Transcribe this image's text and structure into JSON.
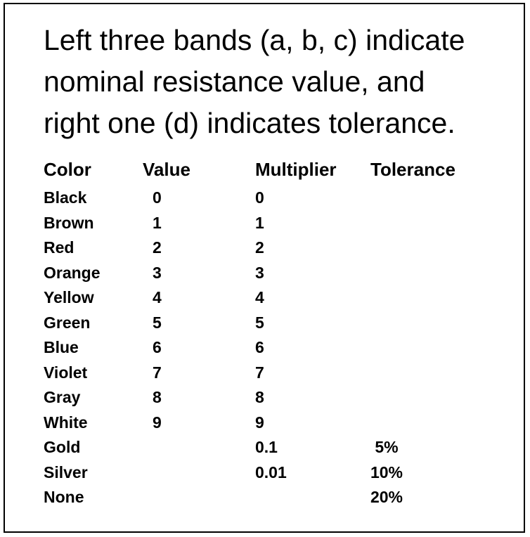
{
  "intro": {
    "lines": [
      "Left three bands (a, b, c) indicate",
      "nominal resistance value, and",
      "right one (d) indicates tolerance."
    ]
  },
  "table": {
    "headers": {
      "color": "Color",
      "value": "Value",
      "multiplier": "Multiplier",
      "tolerance": "Tolerance"
    },
    "rows": [
      {
        "color": "Black",
        "value": "0",
        "multiplier": "0",
        "tolerance": ""
      },
      {
        "color": "Brown",
        "value": "1",
        "multiplier": "1",
        "tolerance": ""
      },
      {
        "color": "Red",
        "value": "2",
        "multiplier": "2",
        "tolerance": ""
      },
      {
        "color": "Orange",
        "value": "3",
        "multiplier": "3",
        "tolerance": ""
      },
      {
        "color": "Yellow",
        "value": "4",
        "multiplier": "4",
        "tolerance": ""
      },
      {
        "color": "Green",
        "value": "5",
        "multiplier": "5",
        "tolerance": ""
      },
      {
        "color": "Blue",
        "value": "6",
        "multiplier": "6",
        "tolerance": ""
      },
      {
        "color": "Violet",
        "value": "7",
        "multiplier": "7",
        "tolerance": ""
      },
      {
        "color": "Gray",
        "value": "8",
        "multiplier": "8",
        "tolerance": ""
      },
      {
        "color": "White",
        "value": "9",
        "multiplier": "9",
        "tolerance": ""
      },
      {
        "color": "Gold",
        "value": "",
        "multiplier": "0.1",
        "tolerance": "5%"
      },
      {
        "color": "Silver",
        "value": "",
        "multiplier": "0.01",
        "tolerance": "10%"
      },
      {
        "color": "None",
        "value": "",
        "multiplier": "",
        "tolerance": "20%"
      }
    ]
  }
}
